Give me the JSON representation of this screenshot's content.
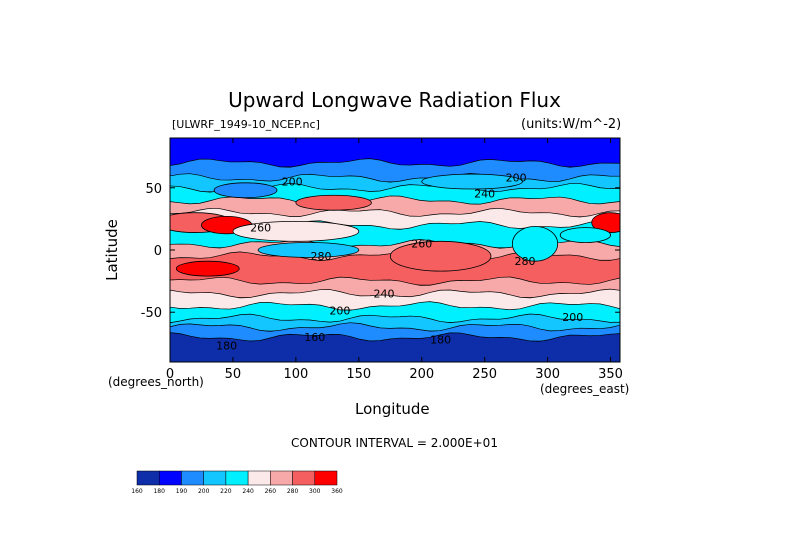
{
  "title": "Upward Longwave Radiation Flux",
  "file_label": "[ULWRF_1949-10_NCEP.nc]",
  "units_label": "(units:W/m^-2)",
  "contour_note": "CONTOUR INTERVAL = 2.000E+01",
  "chart_data": {
    "type": "heatmap",
    "title": "Upward Longwave Radiation Flux",
    "xlabel": "Longitude",
    "ylabel": "Latitude",
    "x_units": "(degrees_east)",
    "y_units": "(degrees_north)",
    "xlim": [
      0,
      357.5
    ],
    "ylim": [
      -90,
      90
    ],
    "x_ticks": [
      0,
      50,
      100,
      150,
      200,
      250,
      300,
      350
    ],
    "y_ticks": [
      -50,
      0,
      50
    ],
    "contour_interval": 20,
    "contour_labels": [
      {
        "lon": 97,
        "lat": 52,
        "value": "200"
      },
      {
        "lon": 275,
        "lat": 55,
        "value": "200"
      },
      {
        "lon": 250,
        "lat": 42,
        "value": "240"
      },
      {
        "lon": 72,
        "lat": 15,
        "value": "260"
      },
      {
        "lon": 120,
        "lat": -8,
        "value": "280"
      },
      {
        "lon": 200,
        "lat": 2,
        "value": "260"
      },
      {
        "lon": 282,
        "lat": -12,
        "value": "280"
      },
      {
        "lon": 170,
        "lat": -38,
        "value": "240"
      },
      {
        "lon": 135,
        "lat": -52,
        "value": "200"
      },
      {
        "lon": 320,
        "lat": -57,
        "value": "200"
      },
      {
        "lon": 45,
        "lat": -80,
        "value": "180"
      },
      {
        "lon": 115,
        "lat": -73,
        "value": "160"
      },
      {
        "lon": 215,
        "lat": -75,
        "value": "180"
      }
    ],
    "colorbar": {
      "levels": [
        "160",
        "180",
        "190",
        "200",
        "220",
        "240",
        "260",
        "280",
        "300",
        "360"
      ],
      "colors": [
        "#0d2ea8",
        "#0003ff",
        "#1e8cff",
        "#13c6ff",
        "#00f0ff",
        "#fbe9e9",
        "#f7a8a8",
        "#f55f5f",
        "#ff0000"
      ]
    },
    "zonal_bands": [
      {
        "lat_from": 90,
        "lat_to": 70,
        "color_index": 1
      },
      {
        "lat_from": 70,
        "lat_to": 58,
        "color_index": 2
      },
      {
        "lat_from": 58,
        "lat_to": 50,
        "color_index": 3
      },
      {
        "lat_from": 50,
        "lat_to": 40,
        "color_index": 4
      },
      {
        "lat_from": 40,
        "lat_to": 30,
        "color_index": 6
      },
      {
        "lat_from": 30,
        "lat_to": 20,
        "color_index": 5
      },
      {
        "lat_from": 20,
        "lat_to": 5,
        "color_index": 4
      },
      {
        "lat_from": 5,
        "lat_to": -5,
        "color_index": 6
      },
      {
        "lat_from": -5,
        "lat_to": -25,
        "color_index": 7
      },
      {
        "lat_from": -25,
        "lat_to": -35,
        "color_index": 6
      },
      {
        "lat_from": -35,
        "lat_to": -45,
        "color_index": 5
      },
      {
        "lat_from": -45,
        "lat_to": -55,
        "color_index": 4
      },
      {
        "lat_from": -55,
        "lat_to": -62,
        "color_index": 3
      },
      {
        "lat_from": -62,
        "lat_to": -70,
        "color_index": 2
      },
      {
        "lat_from": -70,
        "lat_to": -90,
        "color_index": 0
      }
    ],
    "anomalies": [
      {
        "lon": 20,
        "lat": 22,
        "rlon": 30,
        "rlat": 8,
        "color_index": 7
      },
      {
        "lon": 45,
        "lat": 20,
        "rlon": 20,
        "rlat": 7,
        "color_index": 8
      },
      {
        "lon": 350,
        "lat": 22,
        "rlon": 15,
        "rlat": 8,
        "color_index": 8
      },
      {
        "lon": 215,
        "lat": -5,
        "rlon": 40,
        "rlat": 12,
        "color_index": 7
      },
      {
        "lon": 100,
        "lat": 15,
        "rlon": 50,
        "rlat": 8,
        "color_index": 5
      },
      {
        "lon": 290,
        "lat": 5,
        "rlon": 18,
        "rlat": 14,
        "color_index": 4
      },
      {
        "lon": 110,
        "lat": 0,
        "rlon": 40,
        "rlat": 6,
        "color_index": 3
      },
      {
        "lon": 30,
        "lat": -15,
        "rlon": 25,
        "rlat": 6,
        "color_index": 8
      },
      {
        "lon": 130,
        "lat": 38,
        "rlon": 30,
        "rlat": 6,
        "color_index": 7
      },
      {
        "lon": 330,
        "lat": 12,
        "rlon": 20,
        "rlat": 6,
        "color_index": 4
      },
      {
        "lon": 60,
        "lat": 48,
        "rlon": 25,
        "rlat": 6,
        "color_index": 2
      },
      {
        "lon": 240,
        "lat": 55,
        "rlon": 40,
        "rlat": 6,
        "color_index": 3
      }
    ]
  }
}
